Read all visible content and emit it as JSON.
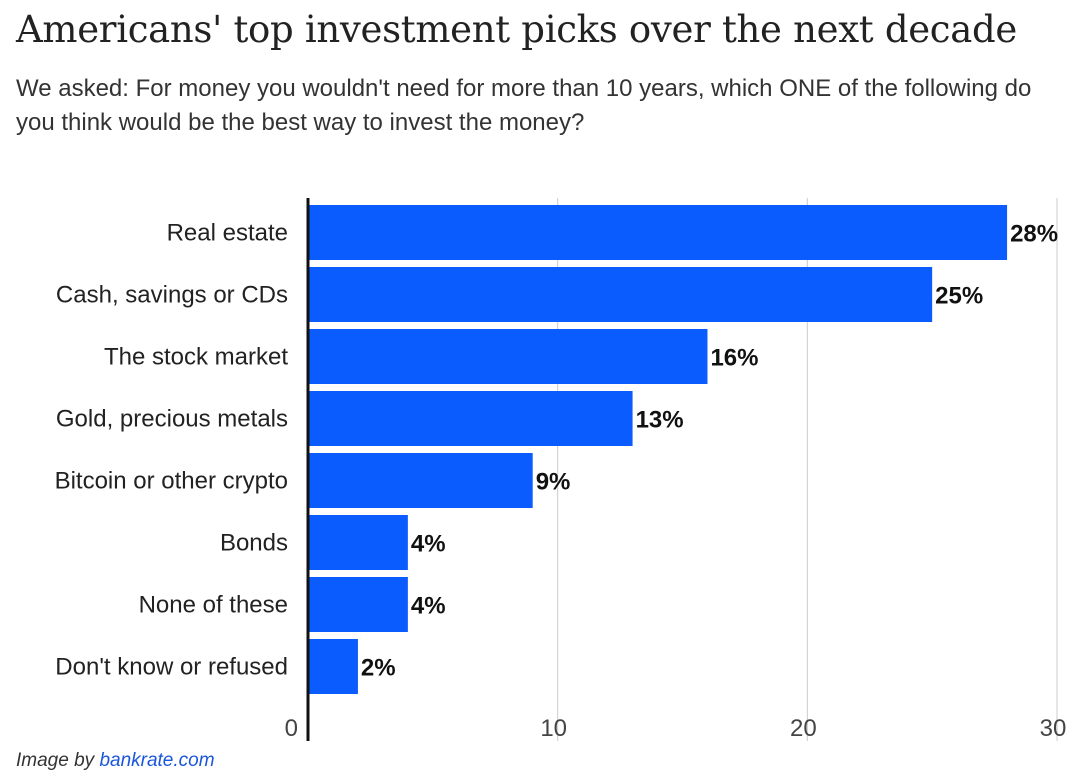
{
  "header": {
    "title": "Americans' top investment picks over the next decade",
    "subtitle": "We asked: For money you wouldn't need for more than 10 years, which ONE of the following do you think would be the best way to invest the money?"
  },
  "credit": {
    "prefix": "Image by",
    "site": "bankrate.com"
  },
  "colors": {
    "bar": "#0b5cff",
    "grid": "#cccccc",
    "axis": "#111111"
  },
  "chart_data": {
    "type": "bar",
    "orientation": "horizontal",
    "categories": [
      "Real estate",
      "Cash, savings or CDs",
      "The stock market",
      "Gold, precious metals",
      "Bitcoin or other crypto",
      "Bonds",
      "None of these",
      "Don't know or refused"
    ],
    "values": [
      28,
      25,
      16,
      13,
      9,
      4,
      4,
      2
    ],
    "data_labels": [
      "28%",
      "25%",
      "16%",
      "13%",
      "9%",
      "4%",
      "4%",
      "2%"
    ],
    "xlim": [
      0,
      30
    ],
    "xticks": [
      0,
      10,
      20,
      30
    ],
    "grid": true,
    "legend": "none"
  }
}
